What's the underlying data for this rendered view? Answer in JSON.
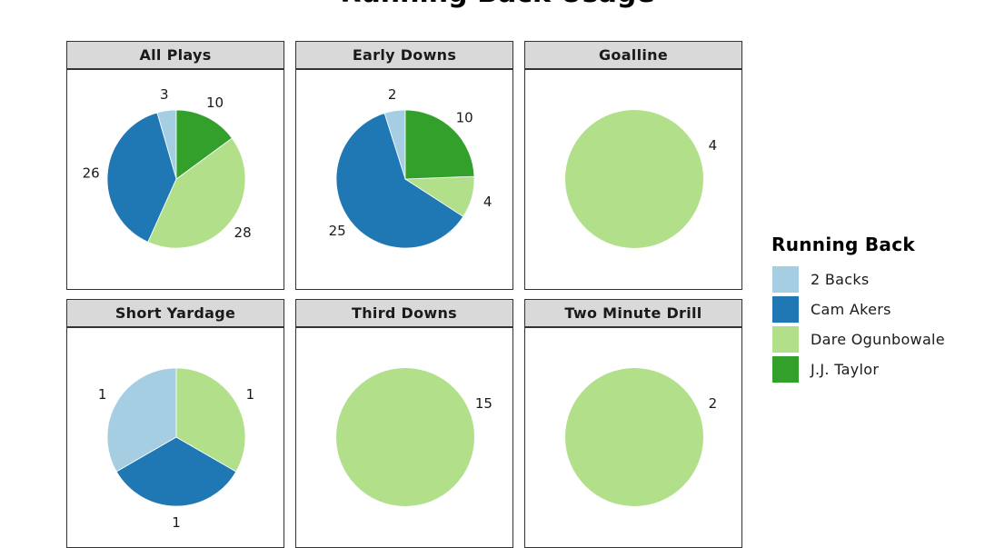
{
  "title": "Running Back Usage",
  "legend": {
    "title": "Running Back",
    "items": [
      {
        "label": "2 Backs",
        "color": "#a6cee3"
      },
      {
        "label": "Cam Akers",
        "color": "#1f78b4"
      },
      {
        "label": "Dare Ogunbowale",
        "color": "#b2df8a"
      },
      {
        "label": "J.J. Taylor",
        "color": "#33a02c"
      }
    ]
  },
  "chart_data": {
    "type": "pie",
    "facet_titles": [
      "All Plays",
      "Early Downs",
      "Goalline",
      "Short Yardage",
      "Third Downs",
      "Two Minute Drill"
    ],
    "categories": [
      "2 Backs",
      "Cam Akers",
      "Dare Ogunbowale",
      "J.J. Taylor"
    ],
    "legend": "right",
    "facets": [
      {
        "title": "All Plays",
        "values": [
          3,
          26,
          28,
          10
        ]
      },
      {
        "title": "Early Downs",
        "values": [
          2,
          25,
          4,
          10
        ]
      },
      {
        "title": "Goalline",
        "values": [
          0,
          0,
          4,
          0
        ]
      },
      {
        "title": "Short Yardage",
        "values": [
          1,
          1,
          1,
          0
        ]
      },
      {
        "title": "Third Downs",
        "values": [
          0,
          0,
          15,
          0
        ]
      },
      {
        "title": "Two Minute Drill",
        "values": [
          0,
          0,
          2,
          0
        ]
      }
    ]
  }
}
